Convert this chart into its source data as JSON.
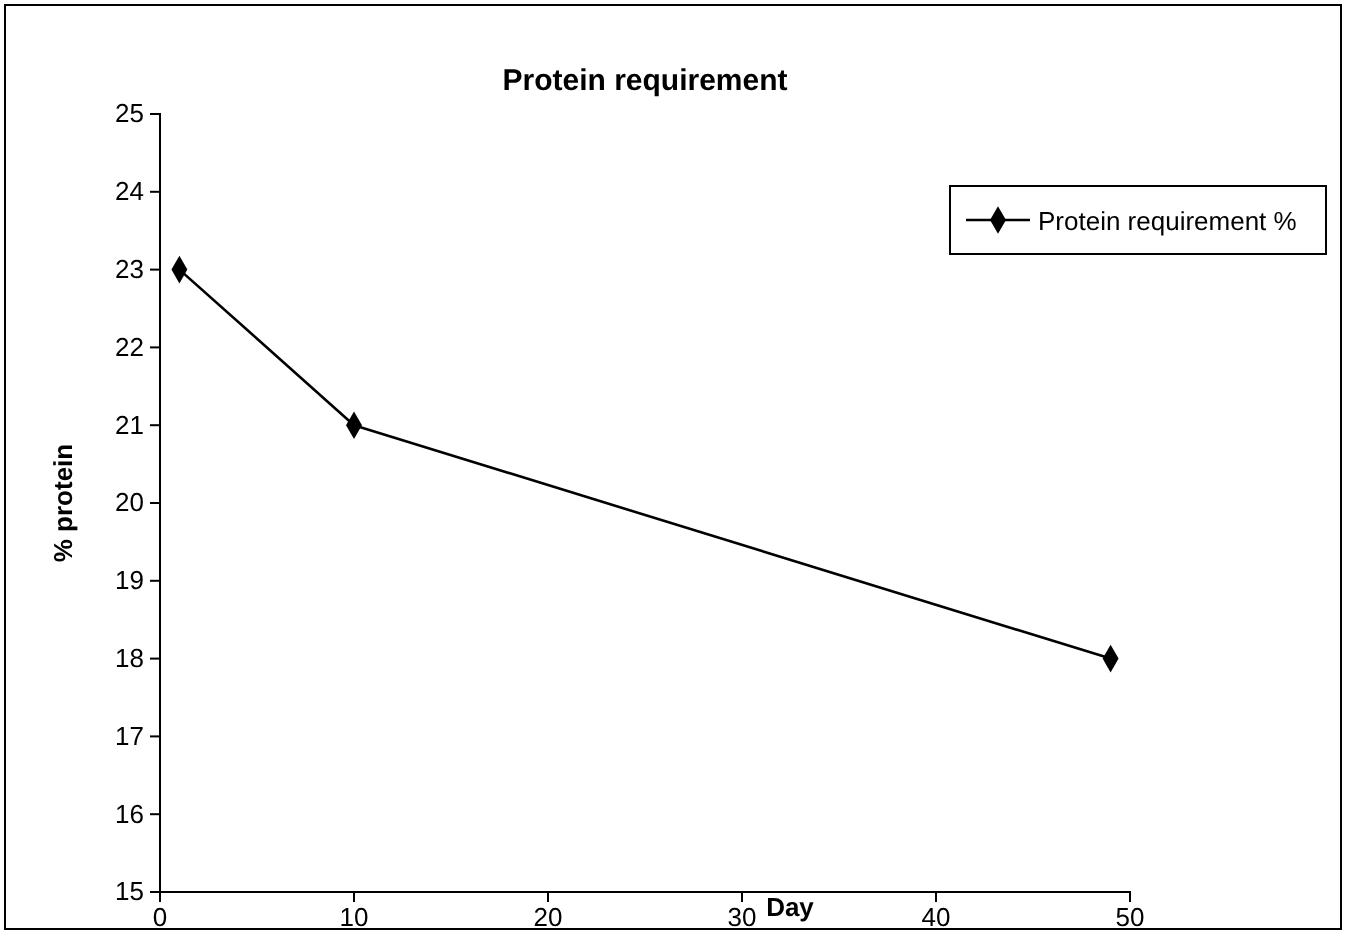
{
  "chart_data": {
    "type": "line",
    "title": "Protein requirement",
    "xlabel": "Day",
    "ylabel": "% protein",
    "x": [
      1,
      10,
      49
    ],
    "series": [
      {
        "name": "Protein requirement %",
        "color": "#000000",
        "values": [
          23,
          21,
          18
        ]
      }
    ],
    "xlim": [
      0,
      50
    ],
    "xticks": [
      0,
      10,
      20,
      30,
      40,
      50
    ],
    "ylim": [
      15,
      25
    ],
    "yticks": [
      15,
      16,
      17,
      18,
      19,
      20,
      21,
      22,
      23,
      24,
      25
    ],
    "marker": "diamond",
    "line_style": "solid",
    "legend": "top right",
    "grid": false
  }
}
